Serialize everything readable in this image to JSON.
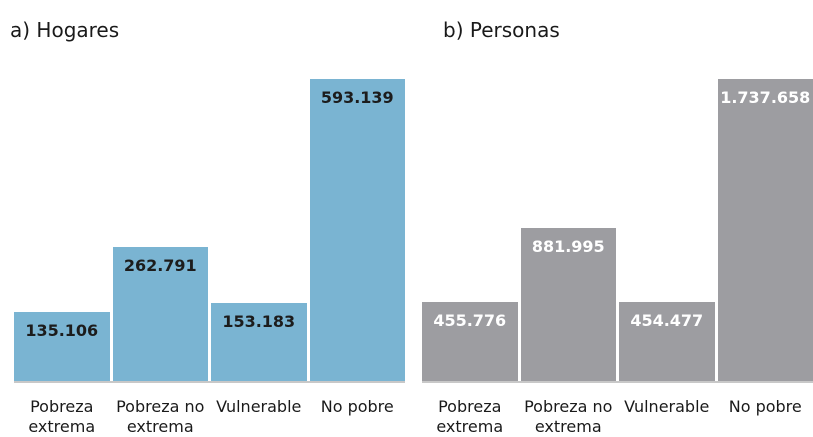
{
  "chart_data": [
    {
      "type": "bar",
      "title": "a) Hogares",
      "categories": [
        "Pobreza extrema",
        "Pobreza no extrema",
        "Vulnerable",
        "No pobre"
      ],
      "values": [
        135106,
        262791,
        153183,
        593139
      ],
      "value_labels": [
        "135.106",
        "262.791",
        "153.183",
        "593.139"
      ],
      "color": "#7ab4d2",
      "label_color": "#1c1c1c"
    },
    {
      "type": "bar",
      "title": "b) Personas",
      "categories": [
        "Pobreza extrema",
        "Pobreza no extrema",
        "Vulnerable",
        "No pobre"
      ],
      "values": [
        455776,
        881995,
        454477,
        1737658
      ],
      "value_labels": [
        "455.776",
        "881.995",
        "454.477",
        "1.737.658"
      ],
      "color": "#9d9da1",
      "label_color": "#ffffff"
    }
  ]
}
